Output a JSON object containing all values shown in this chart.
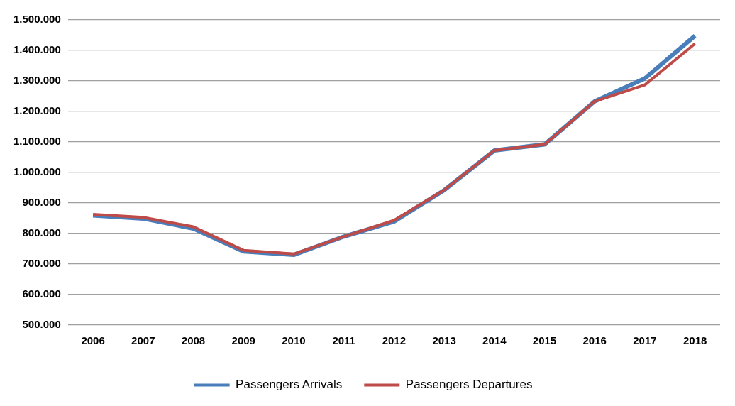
{
  "chart_data": {
    "type": "line",
    "categories": [
      "2006",
      "2007",
      "2008",
      "2009",
      "2010",
      "2011",
      "2012",
      "2013",
      "2014",
      "2015",
      "2016",
      "2017",
      "2018"
    ],
    "series": [
      {
        "name": "Passengers Arrivals",
        "color": "#4a7ebb",
        "values": [
          859000,
          849000,
          816000,
          741000,
          730000,
          790000,
          839000,
          942000,
          1072000,
          1092000,
          1233000,
          1308000,
          1448000
        ]
      },
      {
        "name": "Passengers Departures",
        "color": "#be4b48",
        "values": [
          863000,
          853000,
          822000,
          745000,
          733000,
          790000,
          843000,
          943000,
          1072000,
          1092000,
          1233000,
          1287000,
          1422000
        ]
      }
    ],
    "ylim": [
      500000,
      1500000
    ],
    "yticks": [
      {
        "value": 500000,
        "label": "500.000"
      },
      {
        "value": 600000,
        "label": "600.000"
      },
      {
        "value": 700000,
        "label": "700.000"
      },
      {
        "value": 800000,
        "label": "800.000"
      },
      {
        "value": 900000,
        "label": "900.000"
      },
      {
        "value": 1000000,
        "label": "1.000.000"
      },
      {
        "value": 1100000,
        "label": "1.100.000"
      },
      {
        "value": 1200000,
        "label": "1.200.000"
      },
      {
        "value": 1300000,
        "label": "1.300.000"
      },
      {
        "value": 1400000,
        "label": "1.400.000"
      },
      {
        "value": 1500000,
        "label": "1.500.000"
      }
    ],
    "grid": "y",
    "legend": "bottom",
    "marker": "none",
    "line_style": "solid"
  }
}
